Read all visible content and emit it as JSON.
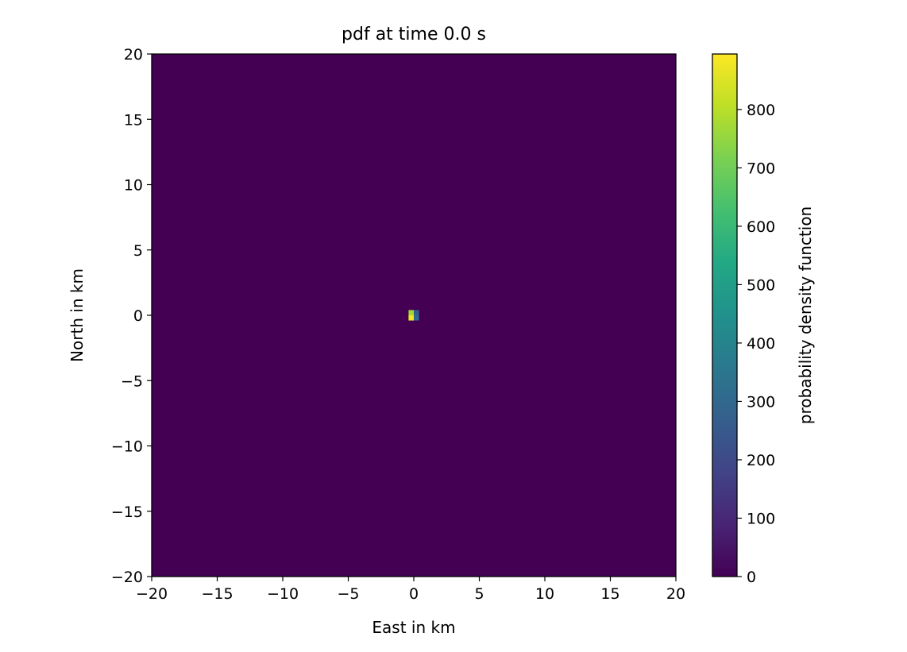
{
  "chart_data": {
    "type": "heatmap",
    "title": "pdf at time 0.0 s",
    "xlabel": "East in km",
    "ylabel": "North in km",
    "xlim": [
      -20,
      20
    ],
    "ylim": [
      -20,
      20
    ],
    "x_ticks": [
      -20,
      -15,
      -10,
      -5,
      0,
      5,
      10,
      15,
      20
    ],
    "y_ticks": [
      -20,
      -15,
      -10,
      -5,
      0,
      5,
      10,
      15,
      20
    ],
    "x_tick_labels": [
      "−20",
      "−15",
      "−10",
      "−5",
      "0",
      "5",
      "10",
      "15",
      "20"
    ],
    "y_tick_labels": [
      "−20",
      "−15",
      "−10",
      "−5",
      "0",
      "5",
      "10",
      "15",
      "20"
    ],
    "background_value": 0,
    "colormap": "viridis",
    "cells": [
      {
        "x0": -0.4,
        "x1": 0.0,
        "y0": -0.4,
        "y1": 0.0,
        "value": 880
      },
      {
        "x0": -0.4,
        "x1": 0.0,
        "y0": 0.0,
        "y1": 0.4,
        "value": 770
      },
      {
        "x0": 0.0,
        "x1": 0.4,
        "y0": -0.4,
        "y1": 0.0,
        "value": 300
      },
      {
        "x0": 0.0,
        "x1": 0.4,
        "y0": 0.0,
        "y1": 0.4,
        "value": 260
      }
    ],
    "colorbar": {
      "label": "probability density function",
      "min": 0,
      "max": 895,
      "ticks": [
        0,
        100,
        200,
        300,
        400,
        500,
        600,
        700,
        800
      ],
      "tick_labels": [
        "0",
        "100",
        "200",
        "300",
        "400",
        "500",
        "600",
        "700",
        "800"
      ]
    },
    "grid": false,
    "legend": "none"
  }
}
